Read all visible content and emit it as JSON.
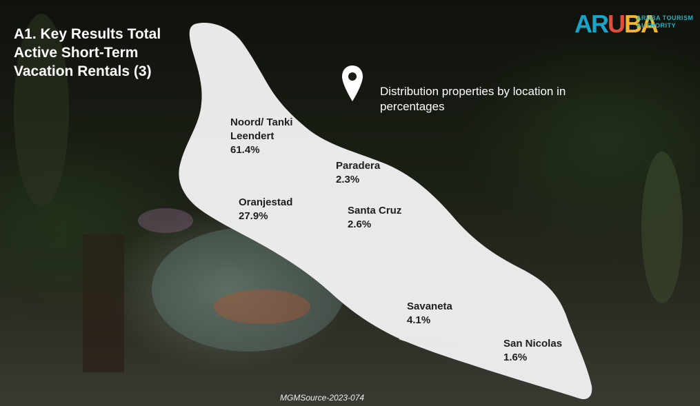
{
  "title": "A1. Key Results Total Active Short-Term Vacation Rentals (3)",
  "logo": {
    "mark": "ARUBA",
    "line1": "ARUBA TOURISM",
    "line2": "AUTHORITY"
  },
  "subtitle": "Distribution properties by location in percentages",
  "locations": [
    {
      "name": "Noord/ Tanki Leendert",
      "value": "61.4%"
    },
    {
      "name": "Paradera",
      "value": "2.3%"
    },
    {
      "name": "Oranjestad",
      "value": "27.9%"
    },
    {
      "name": "Santa Cruz",
      "value": "2.6%"
    },
    {
      "name": "Savaneta",
      "value": "4.1%"
    },
    {
      "name": "San Nicolas",
      "value": "1.6%"
    }
  ],
  "source": "MGMSource-2023-074",
  "colors": {
    "island": "#f0f0ef",
    "logo_blue": "#1aa3c8",
    "logo_red": "#e24c3b",
    "logo_yellow": "#f2b531"
  },
  "icons": {
    "pin": "location-pin-icon"
  }
}
